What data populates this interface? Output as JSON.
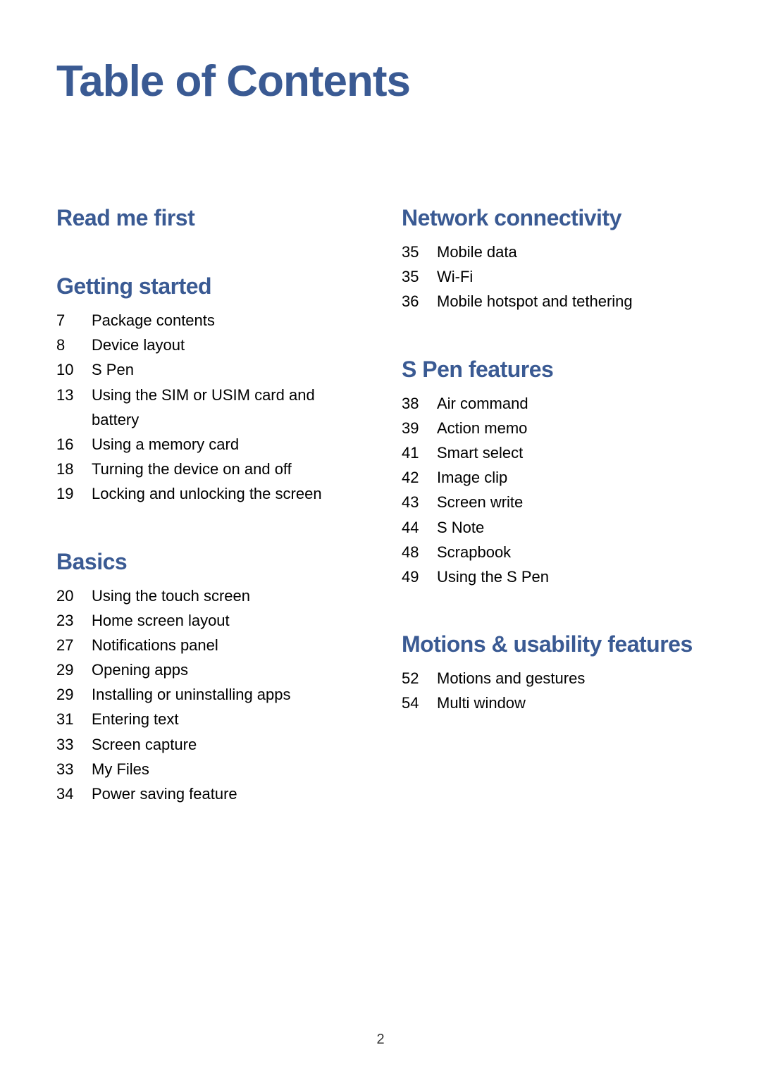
{
  "title": "Table of Contents",
  "page_number": "2",
  "left": {
    "sections": [
      {
        "title": "Read me first",
        "items": []
      },
      {
        "title": "Getting started",
        "items": [
          {
            "pg": "7",
            "label": "Package contents"
          },
          {
            "pg": "8",
            "label": "Device layout"
          },
          {
            "pg": "10",
            "label": "S Pen"
          },
          {
            "pg": "13",
            "label": "Using the SIM or USIM card and battery"
          },
          {
            "pg": "16",
            "label": "Using a memory card"
          },
          {
            "pg": "18",
            "label": "Turning the device on and off"
          },
          {
            "pg": "19",
            "label": "Locking and unlocking the screen"
          }
        ]
      },
      {
        "title": "Basics",
        "items": [
          {
            "pg": "20",
            "label": "Using the touch screen"
          },
          {
            "pg": "23",
            "label": "Home screen layout"
          },
          {
            "pg": "27",
            "label": "Notifications panel"
          },
          {
            "pg": "29",
            "label": "Opening apps"
          },
          {
            "pg": "29",
            "label": "Installing or uninstalling apps"
          },
          {
            "pg": "31",
            "label": "Entering text"
          },
          {
            "pg": "33",
            "label": "Screen capture"
          },
          {
            "pg": "33",
            "label": "My Files"
          },
          {
            "pg": "34",
            "label": "Power saving feature"
          }
        ]
      }
    ]
  },
  "right": {
    "sections": [
      {
        "title": "Network connectivity",
        "items": [
          {
            "pg": "35",
            "label": "Mobile data"
          },
          {
            "pg": "35",
            "label": "Wi-Fi"
          },
          {
            "pg": "36",
            "label": "Mobile hotspot and tethering"
          }
        ]
      },
      {
        "title": "S Pen features",
        "items": [
          {
            "pg": "38",
            "label": "Air command"
          },
          {
            "pg": "39",
            "label": "Action memo"
          },
          {
            "pg": "41",
            "label": "Smart select"
          },
          {
            "pg": "42",
            "label": "Image clip"
          },
          {
            "pg": "43",
            "label": "Screen write"
          },
          {
            "pg": "44",
            "label": "S Note"
          },
          {
            "pg": "48",
            "label": "Scrapbook"
          },
          {
            "pg": "49",
            "label": "Using the S Pen"
          }
        ]
      },
      {
        "title": "Motions & usability features",
        "items": [
          {
            "pg": "52",
            "label": "Motions and gestures"
          },
          {
            "pg": "54",
            "label": "Multi window"
          }
        ]
      }
    ]
  }
}
